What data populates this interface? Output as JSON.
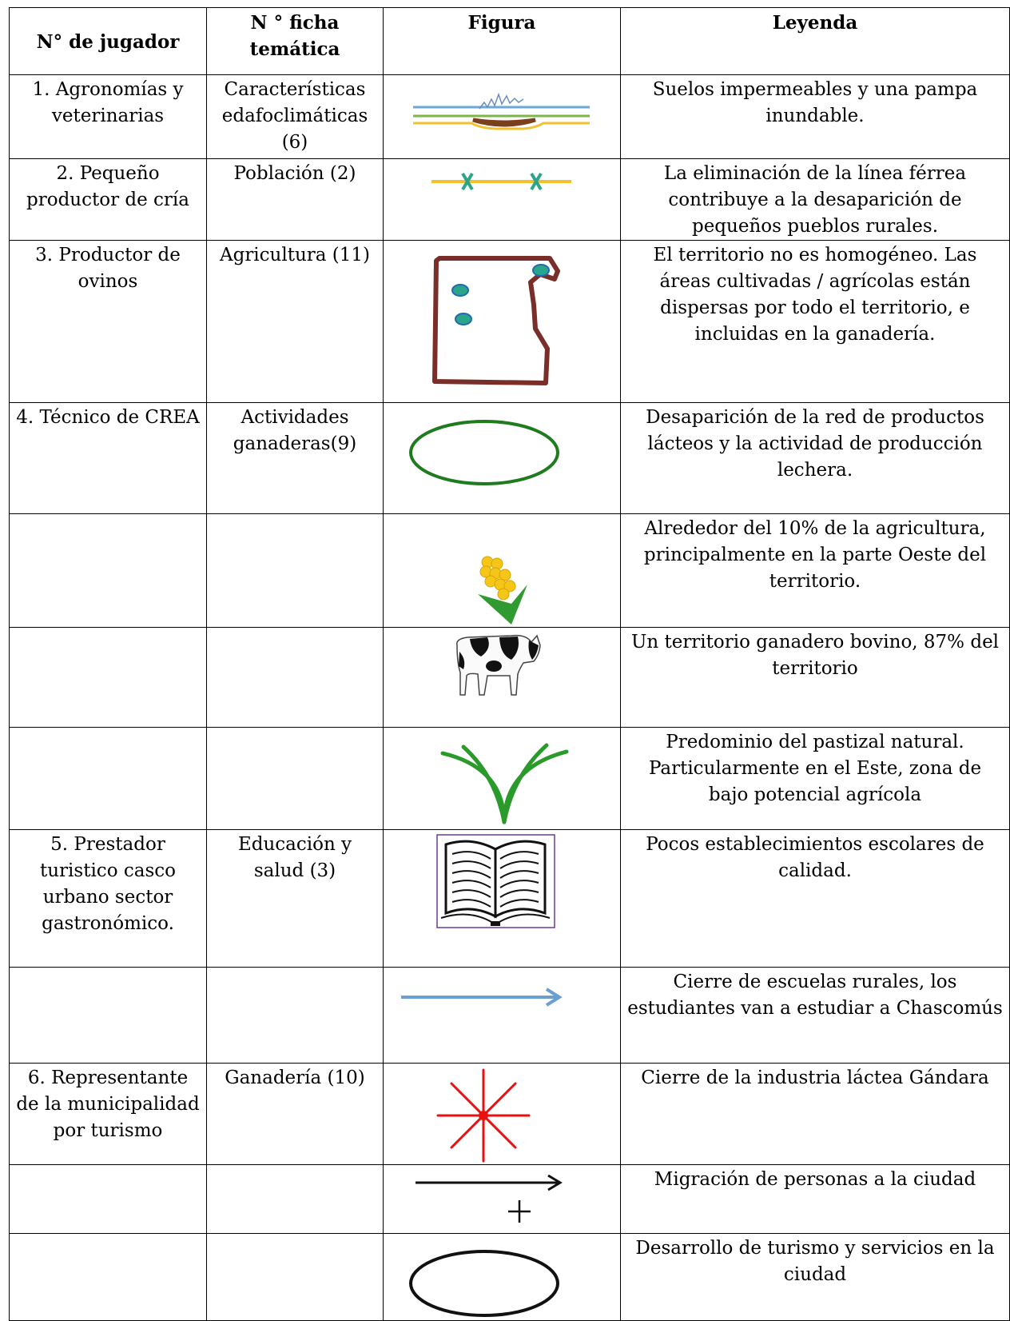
{
  "table": {
    "header": [
      "N° de jugador",
      "N ° ficha temática",
      "Figura",
      "Leyenda"
    ],
    "rows": [
      {
        "player": "1. Agronomías y veterinarias",
        "sheet": "Características edafoclimáticas (6)",
        "legend": "Suelos impermeables y una pampa inundable."
      },
      {
        "player": "2. Pequeño productor de cría",
        "sheet": "Población (2)",
        "legend": "La eliminación de la línea férrea contribuye a la desaparición de pequeños pueblos rurales."
      },
      {
        "player": "3. Productor de ovinos",
        "sheet": "Agricultura (11)",
        "legend": "El territorio no es homogéneo. Las áreas cultivadas / agrícolas están dispersas por todo el territorio, e incluidas en la ganadería."
      },
      {
        "player": "4. Técnico de CREA",
        "sheet": "Actividades ganaderas(9)",
        "legend": "Desaparición de la red de productos lácteos y la actividad de producción lechera."
      },
      {
        "legend": "Alrededor del 10% de la agricultura, principalmente en la parte Oeste del territorio."
      },
      {
        "legend": "Un territorio ganadero bovino, 87% del territorio"
      },
      {
        "legend": "Predominio del pastizal natural. Particularmente en el Este, zona de bajo potencial agrícola"
      },
      {
        "player": "5. Prestador turistico casco urbano sector gastronómico.",
        "sheet": "Educación y salud (3)",
        "legend": "Pocos establecimientos escolares de calidad."
      },
      {
        "legend": "Cierre de escuelas rurales, los estudiantes van a estudiar a Chascomús"
      },
      {
        "player": "6. Representante de la municipalidad por turismo",
        "sheet": "Ganadería (10)",
        "legend": "Cierre de la industria láctea Gándara"
      },
      {
        "legend": "Migración de personas a la ciudad"
      },
      {
        "legend": "Desarrollo de turismo y servicios en la ciudad"
      }
    ]
  }
}
